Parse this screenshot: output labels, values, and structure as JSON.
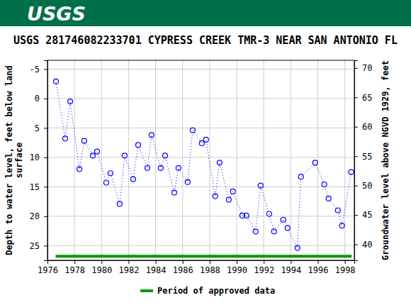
{
  "header": {
    "logo": "USGS"
  },
  "chart_data": {
    "type": "line",
    "title": "USGS 281746082233701 CYPRESS CREEK TMR-3 NEAR SAN ANTONIO FL",
    "ylabel": [
      "Depth to water level, feet below land",
      "surface"
    ],
    "y2label": "Groundwater level above NGVD 1929, feet",
    "xlim": [
      1976,
      1998.7
    ],
    "xticks": [
      1976,
      1978,
      1980,
      1982,
      1984,
      1986,
      1988,
      1990,
      1992,
      1994,
      1996,
      1998
    ],
    "ylim": [
      -6.5,
      27.5
    ],
    "yticks": [
      -5,
      0,
      5,
      10,
      15,
      20,
      25
    ],
    "y2lim": [
      71.3,
      37.3
    ],
    "y2ticks": [
      40,
      45,
      50,
      55,
      60,
      65,
      70
    ],
    "grid": true,
    "legend": "bottom",
    "series": [
      {
        "type": "line",
        "color": "#0000ff",
        "marker": "circle",
        "line_style": "dotted",
        "x": [
          1976.63,
          1977.31,
          1977.68,
          1978.36,
          1978.72,
          1979.35,
          1979.67,
          1980.35,
          1980.66,
          1981.34,
          1981.71,
          1982.34,
          1982.71,
          1983.39,
          1983.7,
          1984.38,
          1984.7,
          1985.38,
          1985.69,
          1986.37,
          1986.74,
          1987.42,
          1987.73,
          1988.41,
          1988.73,
          1989.41,
          1989.72,
          1990.41,
          1990.72,
          1991.4,
          1991.77,
          1992.4,
          1992.76,
          1993.44,
          1993.76,
          1994.49,
          1994.75,
          1995.8,
          1996.48,
          1996.8,
          1997.48,
          1997.79,
          1998.47
        ],
        "values": [
          -2.9,
          6.8,
          0.5,
          12.0,
          7.2,
          9.7,
          9.0,
          14.3,
          12.7,
          17.9,
          9.7,
          13.7,
          7.9,
          11.8,
          6.2,
          11.8,
          9.7,
          16.0,
          11.8,
          14.2,
          5.4,
          7.6,
          7.0,
          16.6,
          10.9,
          17.2,
          15.8,
          19.9,
          19.9,
          22.6,
          14.8,
          19.6,
          22.6,
          20.6,
          22.0,
          25.4,
          13.3,
          10.9,
          14.6,
          17.0,
          19.0,
          21.6,
          12.5
        ]
      },
      {
        "name": "Period of approved data",
        "type": "line",
        "color": "#009900",
        "line_style": "solid",
        "x": [
          1976.6,
          1998.5
        ],
        "values": [
          26.8,
          26.8
        ]
      }
    ]
  }
}
